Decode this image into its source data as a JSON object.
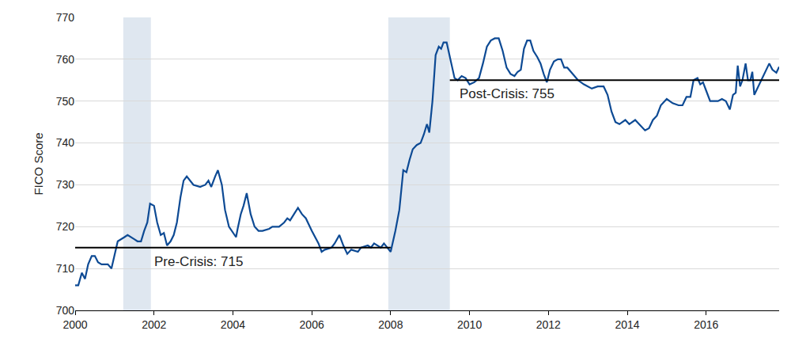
{
  "chart_data": {
    "type": "line",
    "y_label": "FICO Score",
    "color": "#0d4a94",
    "grid": true,
    "xlim": [
      2000,
      2017.85
    ],
    "xticks": [
      2000,
      2002,
      2004,
      2006,
      2008,
      2010,
      2012,
      2014,
      2016
    ],
    "ylim": [
      700,
      770
    ],
    "yticks": [
      700,
      710,
      720,
      730,
      740,
      750,
      760,
      770
    ],
    "recessions": [
      {
        "start": 2001.22,
        "end": 2001.92
      },
      {
        "start": 2007.94,
        "end": 2009.5
      }
    ],
    "reference_lines": [
      {
        "value": 715,
        "from": 2000,
        "to": 2008,
        "label": "Pre-Crisis: 715"
      },
      {
        "value": 755,
        "from": 2009.5,
        "to": 2017.85,
        "label": "Post-Crisis: 755"
      }
    ],
    "x": [
      2000.0,
      2000.08,
      2000.17,
      2000.25,
      2000.33,
      2000.42,
      2000.5,
      2000.58,
      2000.67,
      2000.83,
      2000.92,
      2001.0,
      2001.08,
      2001.25,
      2001.33,
      2001.5,
      2001.58,
      2001.67,
      2001.75,
      2001.83,
      2001.9,
      2002.0,
      2002.08,
      2002.17,
      2002.25,
      2002.33,
      2002.42,
      2002.5,
      2002.58,
      2002.67,
      2002.75,
      2002.83,
      2002.92,
      2003.0,
      2003.17,
      2003.3,
      2003.38,
      2003.45,
      2003.55,
      2003.62,
      2003.72,
      2003.8,
      2003.9,
      2004.0,
      2004.08,
      2004.12,
      2004.2,
      2004.27,
      2004.35,
      2004.45,
      2004.55,
      2004.65,
      2004.75,
      2004.92,
      2005.0,
      2005.17,
      2005.3,
      2005.38,
      2005.45,
      2005.55,
      2005.65,
      2005.75,
      2005.85,
      2006.0,
      2006.08,
      2006.17,
      2006.25,
      2006.33,
      2006.5,
      2006.58,
      2006.7,
      2006.8,
      2006.9,
      2007.0,
      2007.17,
      2007.25,
      2007.42,
      2007.5,
      2007.58,
      2007.67,
      2007.75,
      2007.83,
      2007.92,
      2008.0,
      2008.12,
      2008.22,
      2008.32,
      2008.4,
      2008.48,
      2008.56,
      2008.66,
      2008.76,
      2008.84,
      2008.92,
      2008.98,
      2009.06,
      2009.14,
      2009.22,
      2009.28,
      2009.34,
      2009.42,
      2009.52,
      2009.62,
      2009.7,
      2009.8,
      2009.9,
      2010.0,
      2010.12,
      2010.24,
      2010.34,
      2010.44,
      2010.54,
      2010.64,
      2010.74,
      2010.84,
      2010.94,
      2011.04,
      2011.14,
      2011.22,
      2011.3,
      2011.38,
      2011.46,
      2011.54,
      2011.62,
      2011.72,
      2011.8,
      2011.88,
      2011.96,
      2012.04,
      2012.14,
      2012.24,
      2012.32,
      2012.4,
      2012.48,
      2012.57,
      2012.75,
      2012.9,
      2013.1,
      2013.25,
      2013.4,
      2013.5,
      2013.6,
      2013.7,
      2013.8,
      2013.95,
      2014.05,
      2014.2,
      2014.45,
      2014.55,
      2014.65,
      2014.75,
      2014.85,
      2015.0,
      2015.15,
      2015.3,
      2015.4,
      2015.5,
      2015.6,
      2015.68,
      2015.78,
      2015.85,
      2015.92,
      2016.0,
      2016.1,
      2016.2,
      2016.3,
      2016.4,
      2016.5,
      2016.6,
      2016.68,
      2016.75,
      2016.8,
      2016.86,
      2016.92,
      2017.0,
      2017.06,
      2017.12,
      2017.17,
      2017.22,
      2017.35,
      2017.5,
      2017.6,
      2017.68,
      2017.78,
      2017.85
    ],
    "values": [
      706,
      706,
      709,
      707.5,
      711,
      713,
      713,
      711.5,
      711,
      711,
      710,
      713,
      716.5,
      717.5,
      718,
      717,
      716.5,
      716.5,
      719,
      721,
      725.5,
      725,
      721,
      718,
      718.5,
      715.5,
      716.5,
      718,
      721,
      727,
      731,
      732,
      731,
      730,
      729.5,
      730,
      731,
      729.5,
      732,
      733.5,
      730,
      724,
      720,
      718.5,
      717.5,
      719.5,
      723,
      725,
      728,
      723,
      720,
      719,
      719,
      719.5,
      720,
      720,
      721,
      722,
      721.5,
      723,
      724.5,
      723,
      722,
      719,
      717.5,
      716,
      714,
      714.5,
      715,
      716,
      718,
      715.5,
      713.5,
      714.5,
      714,
      715,
      715.5,
      715,
      716,
      715.5,
      715,
      716,
      715,
      714,
      719,
      724,
      733.5,
      733,
      736,
      738.5,
      739.5,
      740,
      742,
      744.5,
      742.5,
      750,
      761,
      763,
      762.5,
      764,
      764,
      760,
      755.5,
      755,
      756,
      755.5,
      754,
      754.5,
      755.5,
      759,
      763,
      764.5,
      765,
      765,
      762,
      758,
      756.5,
      756,
      757,
      757.5,
      762.5,
      764.5,
      764.5,
      762,
      760.5,
      759,
      756.5,
      754.5,
      757.5,
      759.5,
      760,
      760,
      758,
      758,
      757,
      755,
      754,
      753,
      753.5,
      753.5,
      751.5,
      747.5,
      745,
      744.5,
      745.5,
      744.5,
      745.5,
      743,
      743.5,
      745.5,
      746.5,
      749,
      750.5,
      749.5,
      749,
      749,
      751,
      751,
      755,
      755.5,
      754,
      754.5,
      752.5,
      750,
      750,
      750,
      750.5,
      750,
      748,
      751.5,
      752,
      758.5,
      753.5,
      755,
      759,
      755,
      755,
      757,
      751.5,
      754,
      757,
      759,
      757.5,
      756.8,
      758.2
    ]
  }
}
